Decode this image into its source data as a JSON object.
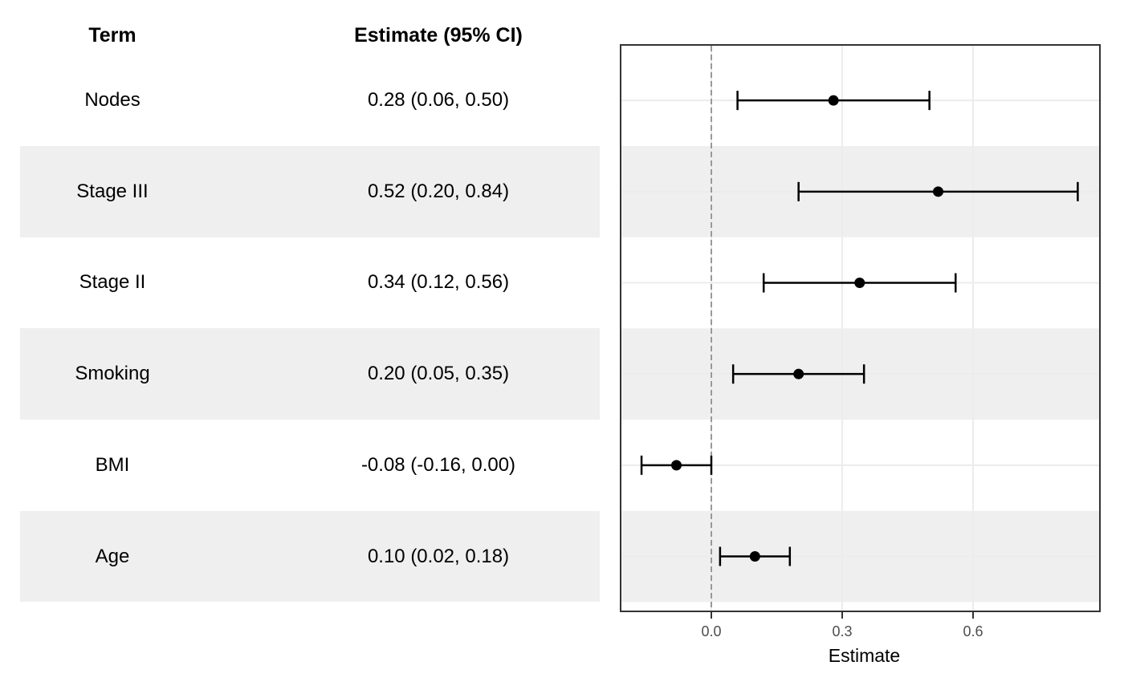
{
  "table": {
    "headers": {
      "term": "Term",
      "estimate": "Estimate (95% CI)"
    }
  },
  "chart_data": {
    "type": "forest",
    "xlabel": "Estimate",
    "x_tick_labels": [
      "0.0",
      "0.3",
      "0.6"
    ],
    "x_tick_values": [
      0.0,
      0.3,
      0.6
    ],
    "xlim": [
      -0.21,
      0.89
    ],
    "reference_line": 0.0,
    "grid": "major x and y, light gray",
    "rows": [
      {
        "term": "Nodes",
        "label": "0.28 (0.06, 0.50)",
        "estimate": 0.28,
        "lower": 0.06,
        "upper": 0.5,
        "striped": false
      },
      {
        "term": "Stage III",
        "label": "0.52 (0.20, 0.84)",
        "estimate": 0.52,
        "lower": 0.2,
        "upper": 0.84,
        "striped": true
      },
      {
        "term": "Stage II",
        "label": "0.34 (0.12, 0.56)",
        "estimate": 0.34,
        "lower": 0.12,
        "upper": 0.56,
        "striped": false
      },
      {
        "term": "Smoking",
        "label": "0.20 (0.05, 0.35)",
        "estimate": 0.2,
        "lower": 0.05,
        "upper": 0.35,
        "striped": true
      },
      {
        "term": "BMI",
        "label": "-0.08 (-0.16, 0.00)",
        "estimate": -0.08,
        "lower": -0.16,
        "upper": 0.0,
        "striped": false
      },
      {
        "term": "Age",
        "label": "0.10 (0.02, 0.18)",
        "estimate": 0.1,
        "lower": 0.02,
        "upper": 0.18,
        "striped": true
      }
    ],
    "colors": {
      "stripe": "#efefef",
      "grid": "#ececec",
      "reference": "#999999",
      "panel_border": "#333333",
      "marker": "#000000",
      "tick_label": "#4d4d4d"
    }
  }
}
